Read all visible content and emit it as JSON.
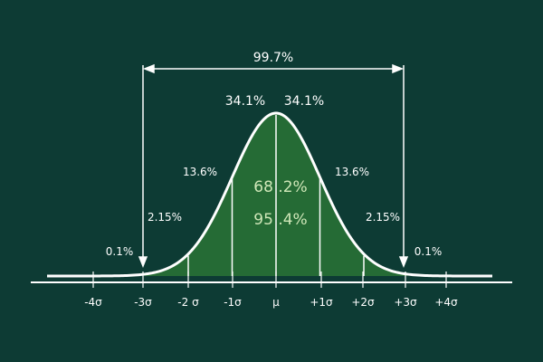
{
  "figure": {
    "colors": {
      "background": "#0d3b34",
      "fill": "#256b35",
      "curve": "#ffffff",
      "center_text": "#cfe7b8"
    },
    "span_label": "99.7%",
    "band_labels": {
      "left_1": "34.1%",
      "right_1": "34.1%",
      "left_2": "13.6%",
      "right_2": "13.6%",
      "left_3": "2.15%",
      "right_3": "2.15%",
      "left_tail": "0.1%",
      "right_tail": "0.1%"
    },
    "center_labels": {
      "one_sigma": "68 .2%",
      "two_sigma": "95 .4%"
    },
    "ticks": [
      "-4σ",
      "-3σ",
      "-2 σ",
      "-1σ",
      "μ",
      "+1σ",
      "+2σ",
      "+3σ",
      "+4σ"
    ]
  }
}
